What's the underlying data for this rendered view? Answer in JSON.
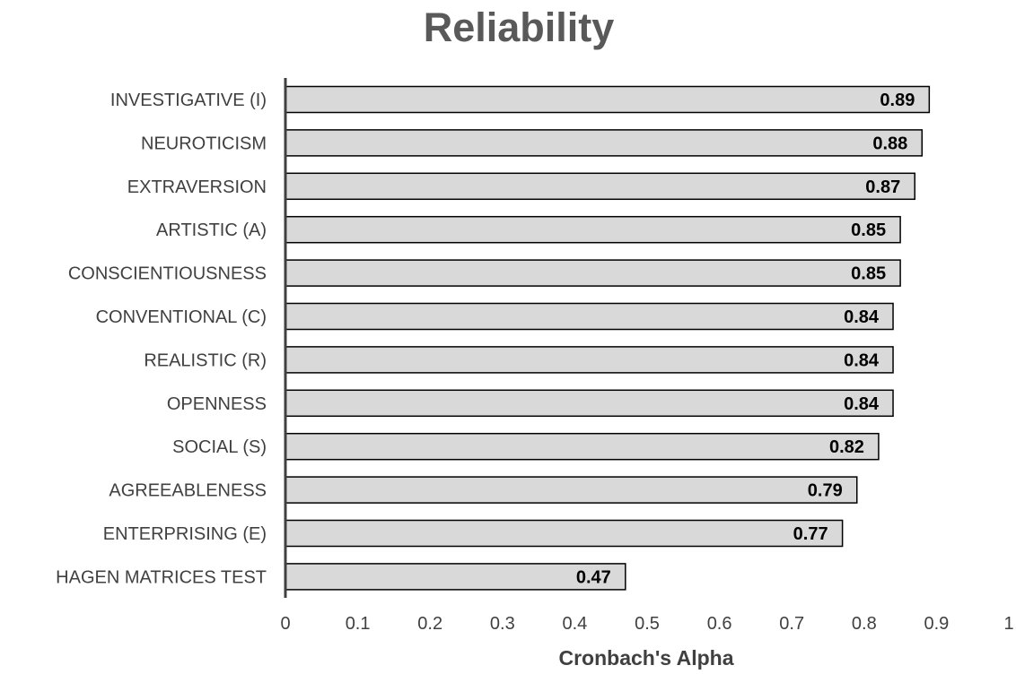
{
  "chart_data": {
    "type": "bar",
    "orientation": "horizontal",
    "title": "Reliability",
    "xlabel": "Cronbach's Alpha",
    "ylabel": "",
    "xlim": [
      0,
      1
    ],
    "xticks": [
      "0",
      "0.1",
      "0.2",
      "0.3",
      "0.4",
      "0.5",
      "0.6",
      "0.7",
      "0.8",
      "0.9",
      "1"
    ],
    "categories": [
      "INVESTIGATIVE (I)",
      "NEUROTICISM",
      "EXTRAVERSION",
      "ARTISTIC (A)",
      "CONSCIENTIOUSNESS",
      "CONVENTIONAL (C)",
      "REALISTIC (R)",
      "OPENNESS",
      "SOCIAL (S)",
      "AGREEABLENESS",
      "ENTERPRISING (E)",
      "HAGEN MATRICES TEST"
    ],
    "values": [
      0.89,
      0.88,
      0.87,
      0.85,
      0.85,
      0.84,
      0.84,
      0.84,
      0.82,
      0.79,
      0.77,
      0.47
    ],
    "data_labels": [
      "0.89",
      "0.88",
      "0.87",
      "0.85",
      "0.85",
      "0.84",
      "0.84",
      "0.84",
      "0.82",
      "0.79",
      "0.77",
      "0.47"
    ],
    "grid": false,
    "legend": "none",
    "colors": {
      "bar_fill": "#d9d9d9",
      "bar_stroke": "#000000",
      "text": "#404040",
      "title": "#595959"
    }
  }
}
